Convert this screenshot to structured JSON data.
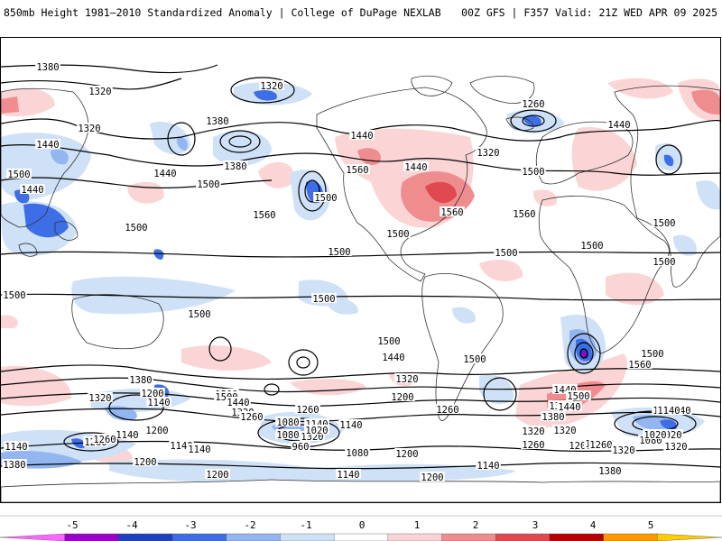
{
  "header": {
    "title": "850mb Height 1981–2010 Standardized Anomaly | College of DuPage NEXLAB",
    "run_info": "00Z GFS | F357 Valid: 21Z WED APR 09 2025"
  },
  "contour_labels": [
    "1380",
    "1320",
    "1320",
    "1380",
    "1320",
    "1260",
    "1440",
    "1440",
    "1320",
    "1440",
    "1500",
    "1440",
    "1440",
    "1380",
    "1500",
    "1500",
    "1560",
    "1560",
    "1440",
    "1500",
    "1560",
    "1500",
    "1500",
    "1560",
    "1500",
    "1500",
    "1500",
    "1500",
    "1500",
    "1500",
    "1500",
    "1500",
    "1500",
    "1500",
    "1560",
    "1440",
    "1320",
    "1260",
    "1500",
    "1380",
    "1320",
    "1200",
    "1140",
    "1500",
    "1440",
    "1320",
    "1260",
    "1380",
    "1440",
    "1320",
    "1200",
    "1260",
    "1500",
    "1440",
    "1380",
    "1320",
    "1260",
    "1200",
    "1260",
    "1080",
    "1140",
    "1320",
    "1200",
    "1140",
    "1140",
    "1020",
    "1200",
    "1140",
    "1080",
    "960",
    "1140",
    "1140",
    "1020",
    "1200",
    "1260",
    "1380",
    "1080",
    "1260",
    "1320",
    "1140",
    "1200",
    "1140",
    "1200",
    "1140",
    "1080",
    "1320",
    "1380",
    "1020",
    "1140",
    "1500",
    "1140",
    "1260"
  ],
  "colorbar": {
    "ticks": [
      "-5",
      "-4",
      "-3",
      "-2",
      "-1",
      "0",
      "1",
      "2",
      "3",
      "4",
      "5"
    ],
    "colors": [
      "#ff66ff",
      "#9a00c8",
      "#1f3fbf",
      "#3d6ee6",
      "#93b6f0",
      "#cfe1f7",
      "#ffffff",
      "#fbd5d6",
      "#ef8c8e",
      "#e04a4f",
      "#b70000",
      "#ff9900",
      "#ffcc00"
    ]
  }
}
